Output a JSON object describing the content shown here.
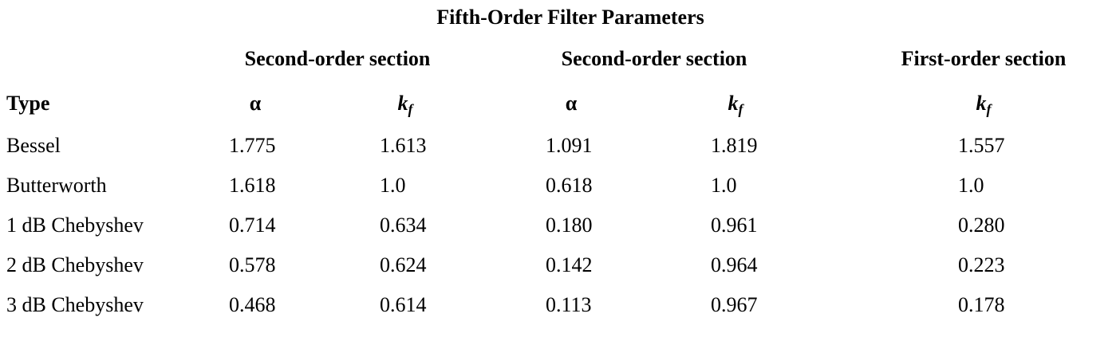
{
  "title": "Fifth-Order Filter Parameters",
  "table": {
    "groups": [
      "Second-order section",
      "Second-order section",
      "First-order section"
    ],
    "columns": [
      "Type",
      "α",
      {
        "main": "k",
        "sub": "f"
      },
      "α",
      {
        "main": "k",
        "sub": "f"
      },
      {
        "main": "k",
        "sub": "f"
      }
    ],
    "rows": [
      [
        "Bessel",
        "1.775",
        "1.613",
        "1.091",
        "1.819",
        "1.557"
      ],
      [
        "Butterworth",
        "1.618",
        "1.0",
        "0.618",
        "1.0",
        "1.0"
      ],
      [
        "1 dB Chebyshev",
        "0.714",
        "0.634",
        "0.180",
        "0.961",
        "0.280"
      ],
      [
        "2 dB Chebyshev",
        "0.578",
        "0.624",
        "0.142",
        "0.964",
        "0.223"
      ],
      [
        "3 dB Chebyshev",
        "0.468",
        "0.614",
        "0.113",
        "0.967",
        "0.178"
      ]
    ]
  }
}
